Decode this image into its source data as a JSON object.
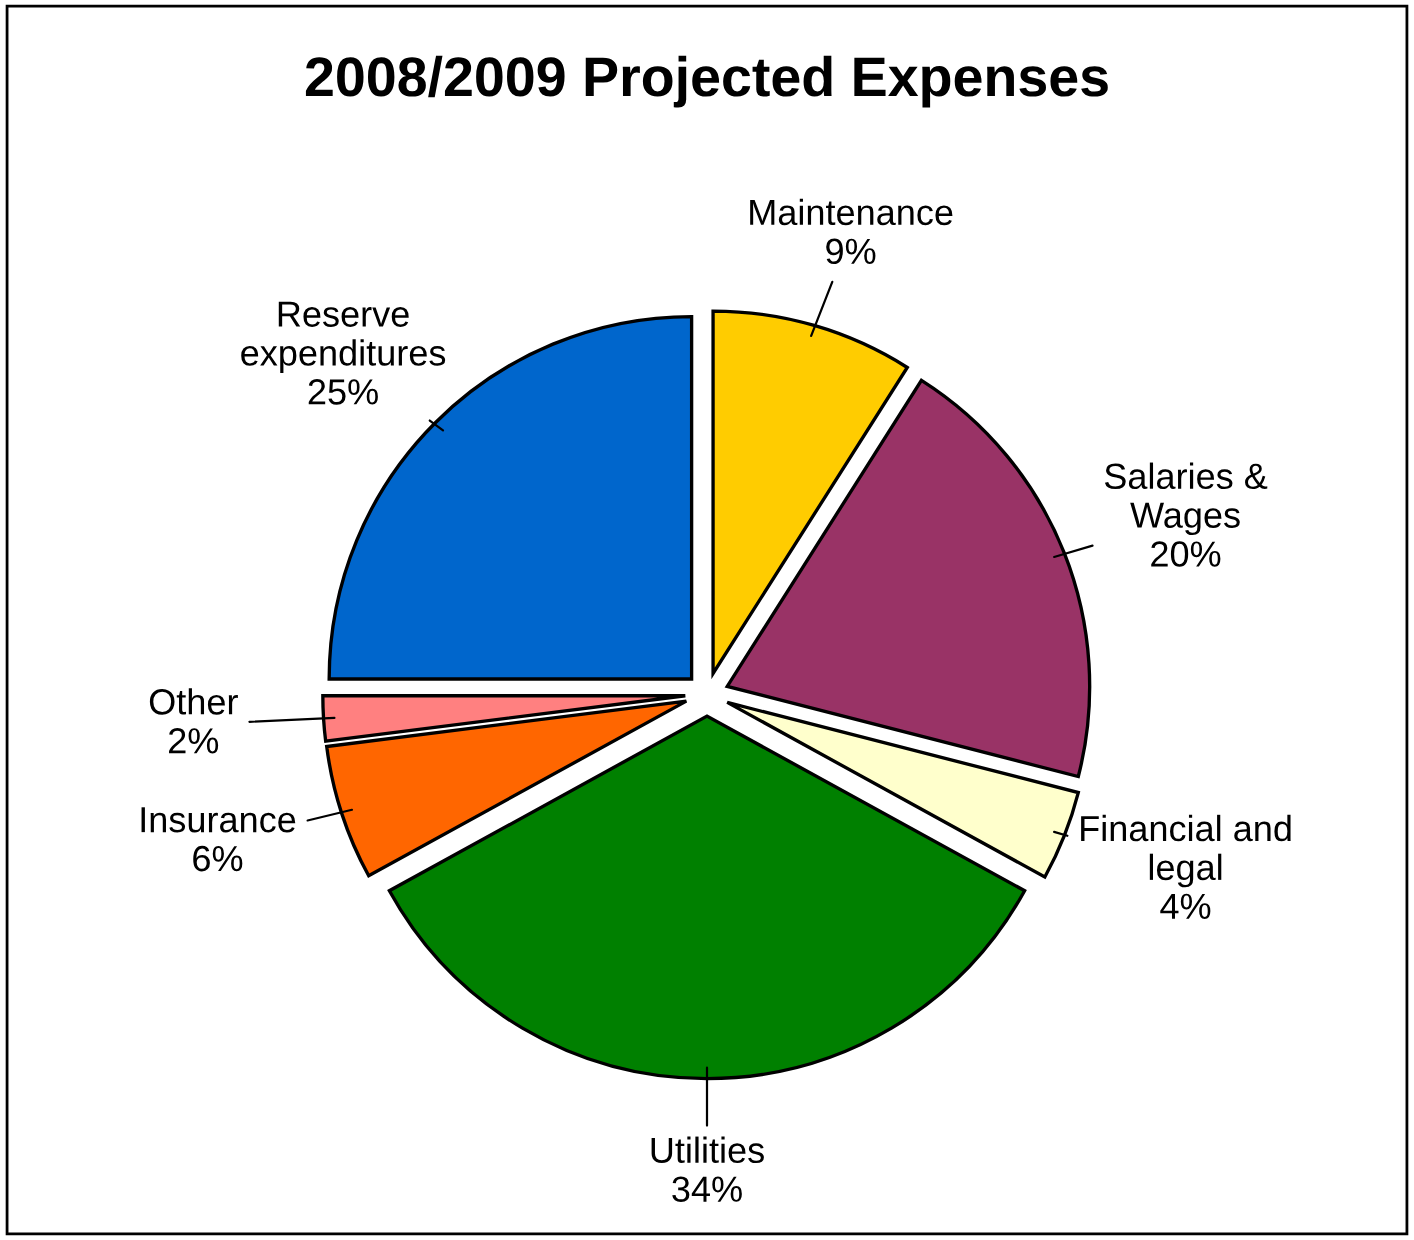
{
  "chart_data": {
    "type": "pie",
    "title": "2008/2009 Projected Expenses",
    "categories": [
      "Maintenance",
      "Salaries &\nWages",
      "Financial and\nlegal",
      "Utilities",
      "Insurance",
      "Other",
      "Reserve\nexpenditures"
    ],
    "values": [
      9,
      20,
      4,
      34,
      6,
      2,
      25
    ],
    "value_labels": [
      "9%",
      "20%",
      "4%",
      "34%",
      "6%",
      "2%",
      "25%"
    ],
    "colors": [
      "#ffcc00",
      "#993366",
      "#ffffcc",
      "#008000",
      "#ff6600",
      "#ff8080",
      "#0066cc"
    ]
  }
}
